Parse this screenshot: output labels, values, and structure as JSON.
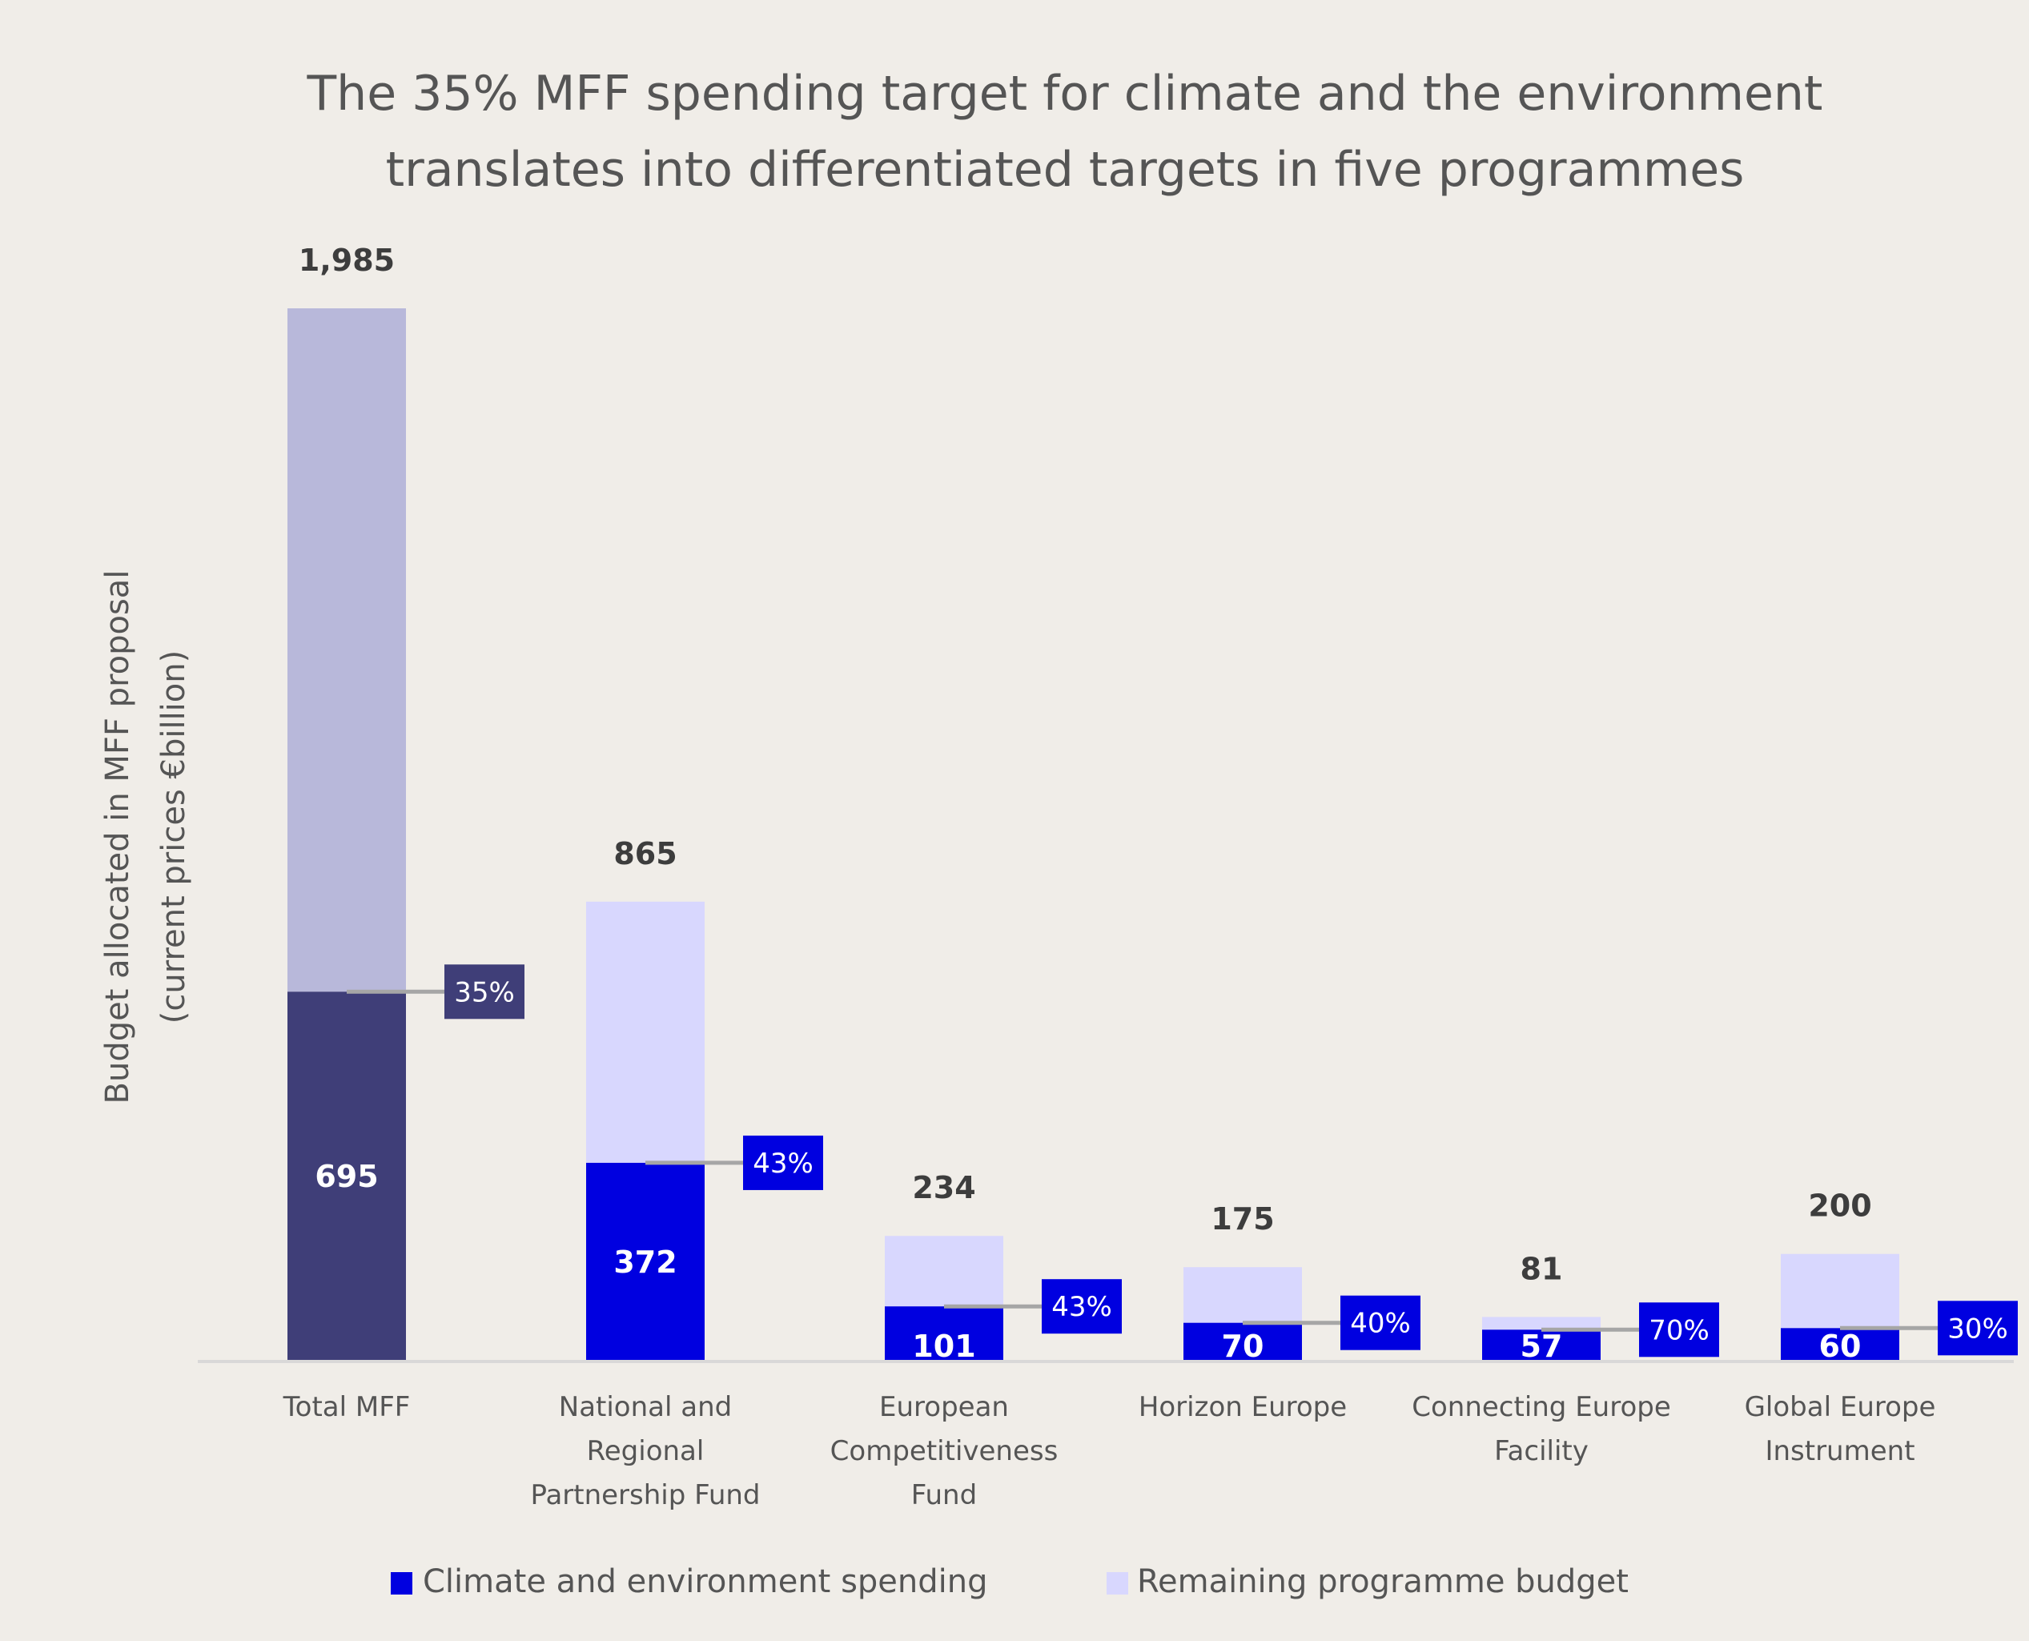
{
  "chart_data": {
    "type": "bar",
    "stacked": true,
    "title": "The 35% MFF spending target for climate and the environment translates into differentiated targets in five programmes",
    "title_lines": [
      "The 35% MFF spending target for climate and the environment",
      "translates into differentiated targets in five programmes"
    ],
    "xlabel": "",
    "ylabel": "Budget allocated in MFF proposal (current prices €billion)",
    "ylabel_lines": [
      "Budget allocated in MFF proposal",
      "(current prices €billion)"
    ],
    "ylim": [
      0,
      1985
    ],
    "grid": false,
    "legend_position": "bottom-center",
    "categories": [
      "Total MFF",
      "National and Regional Partnership Fund",
      "European Competitiveness Fund",
      "Horizon Europe",
      "Connecting Europe Facility",
      "Global Europe Instrument"
    ],
    "category_label_lines": [
      [
        "Total MFF"
      ],
      [
        "National and",
        "Regional",
        "Partnership Fund"
      ],
      [
        "European",
        "Competitiveness",
        "Fund"
      ],
      [
        "Horizon Europe"
      ],
      [
        "Connecting Europe",
        "Facility"
      ],
      [
        "Global Europe",
        "Instrument"
      ]
    ],
    "totals": [
      1985,
      865,
      234,
      175,
      81,
      200
    ],
    "total_labels": [
      "1,985",
      "865",
      "234",
      "175",
      "81",
      "200"
    ],
    "series": [
      {
        "name": "Climate and environment spending",
        "values": [
          695,
          372,
          101,
          70,
          57,
          60
        ],
        "labels": [
          "695",
          "372",
          "101",
          "70",
          "57",
          "60"
        ],
        "color": "#0000e0",
        "total_bar_color": "#3f3e78"
      },
      {
        "name": "Remaining programme budget",
        "values": [
          1290,
          493,
          133,
          105,
          24,
          140
        ],
        "color": "#d8d7fe",
        "total_bar_color": "#b8b8da"
      }
    ],
    "target_percentages": [
      "35%",
      "43%",
      "43%",
      "40%",
      "70%",
      "30%"
    ],
    "legend": [
      {
        "label": "Climate and environment spending",
        "color": "#0000e0"
      },
      {
        "label": "Remaining programme budget",
        "color": "#d8d7fe"
      }
    ]
  },
  "colors": {
    "background": "#f0ede8",
    "axis_line": "#d9d8d8",
    "connector": "#a6a6a6",
    "total_label": "#3d3d3d",
    "text": "#555555"
  }
}
